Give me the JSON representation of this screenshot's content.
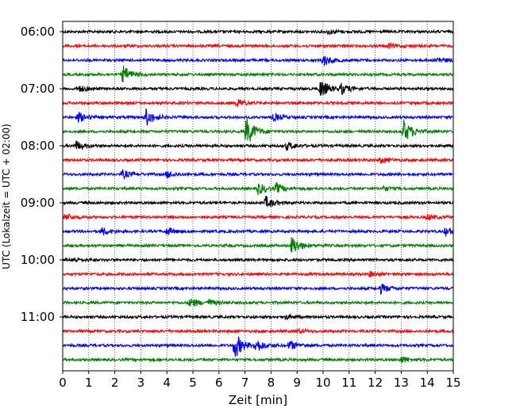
{
  "chart_data": {
    "type": "line",
    "title": "",
    "xlabel": "Zeit  [min]",
    "ylabel": "UTC (Lokalzeit = UTC + 02:00)",
    "xlim": [
      0,
      15
    ],
    "x_ticks": [
      "0",
      "1",
      "2",
      "3",
      "4",
      "5",
      "6",
      "7",
      "8",
      "9",
      "10",
      "11",
      "12",
      "13",
      "14",
      "15"
    ],
    "grid": "vertical dotted at each minute",
    "y_ticks": [
      {
        "label": "06:00",
        "row": 0
      },
      {
        "label": "07:00",
        "row": 4
      },
      {
        "label": "08:00",
        "row": 8
      },
      {
        "label": "09:00",
        "row": 12
      },
      {
        "label": "10:00",
        "row": 16
      },
      {
        "label": "11:00",
        "row": 20
      }
    ],
    "trace_colors": [
      "#000000",
      "#ff0000",
      "#0000ff",
      "#008000"
    ],
    "traces": [
      {
        "start": "06:00",
        "color": "#000000",
        "events": [
          {
            "t": 10.2,
            "amp": 0.25
          }
        ]
      },
      {
        "start": "06:15",
        "color": "#ff0000",
        "events": [
          {
            "t": 12.5,
            "amp": 0.25
          }
        ]
      },
      {
        "start": "06:30",
        "color": "#0000ff",
        "events": [
          {
            "t": 10.0,
            "amp": 0.6
          },
          {
            "t": 14.4,
            "amp": 0.35
          }
        ]
      },
      {
        "start": "06:45",
        "color": "#008000",
        "events": [
          {
            "t": 2.3,
            "amp": 0.9
          }
        ]
      },
      {
        "start": "07:00",
        "color": "#000000",
        "events": [
          {
            "t": 0.6,
            "amp": 0.35
          },
          {
            "t": 9.9,
            "amp": 1.0
          },
          {
            "t": 10.7,
            "amp": 0.5
          }
        ]
      },
      {
        "start": "07:15",
        "color": "#ff0000",
        "events": [
          {
            "t": 6.7,
            "amp": 0.4
          }
        ]
      },
      {
        "start": "07:30",
        "color": "#0000ff",
        "events": [
          {
            "t": 0.6,
            "amp": 0.5
          },
          {
            "t": 3.2,
            "amp": 0.9
          },
          {
            "t": 8.1,
            "amp": 0.4
          }
        ]
      },
      {
        "start": "07:45",
        "color": "#008000",
        "events": [
          {
            "t": 7.05,
            "amp": 1.6
          },
          {
            "t": 13.1,
            "amp": 1.2
          }
        ]
      },
      {
        "start": "08:00",
        "color": "#000000",
        "events": [
          {
            "t": 0.5,
            "amp": 0.5
          },
          {
            "t": 8.6,
            "amp": 0.4
          }
        ]
      },
      {
        "start": "08:15",
        "color": "#ff0000",
        "events": [
          {
            "t": 12.2,
            "amp": 0.3
          }
        ]
      },
      {
        "start": "08:30",
        "color": "#0000ff",
        "events": [
          {
            "t": 2.3,
            "amp": 0.4
          },
          {
            "t": 4.0,
            "amp": 0.35
          }
        ]
      },
      {
        "start": "08:45",
        "color": "#008000",
        "events": [
          {
            "t": 7.5,
            "amp": 0.6
          },
          {
            "t": 8.2,
            "amp": 0.5
          },
          {
            "t": 12.3,
            "amp": 0.25
          }
        ]
      },
      {
        "start": "09:00",
        "color": "#000000",
        "events": [
          {
            "t": 7.8,
            "amp": 0.6
          },
          {
            "t": 15.0,
            "amp": 0.35
          }
        ]
      },
      {
        "start": "09:15",
        "color": "#ff0000",
        "events": [
          {
            "t": 0.1,
            "amp": 0.35
          },
          {
            "t": 14.0,
            "amp": 0.3
          }
        ]
      },
      {
        "start": "09:30",
        "color": "#0000ff",
        "events": [
          {
            "t": 1.5,
            "amp": 0.4
          },
          {
            "t": 4.0,
            "amp": 0.35
          },
          {
            "t": 14.7,
            "amp": 0.45
          }
        ]
      },
      {
        "start": "09:45",
        "color": "#008000",
        "events": [
          {
            "t": 8.8,
            "amp": 1.0
          }
        ]
      },
      {
        "start": "10:00",
        "color": "#000000",
        "events": [
          {
            "t": 0.4,
            "amp": 0.25
          }
        ]
      },
      {
        "start": "10:15",
        "color": "#ff0000",
        "events": [
          {
            "t": 11.8,
            "amp": 0.25
          }
        ]
      },
      {
        "start": "10:30",
        "color": "#0000ff",
        "events": [
          {
            "t": 12.2,
            "amp": 0.5
          }
        ]
      },
      {
        "start": "10:45",
        "color": "#008000",
        "events": [
          {
            "t": 4.9,
            "amp": 0.5
          },
          {
            "t": 5.6,
            "amp": 0.3
          }
        ]
      },
      {
        "start": "11:00",
        "color": "#000000",
        "events": [
          {
            "t": 8.5,
            "amp": 0.25
          }
        ]
      },
      {
        "start": "11:15",
        "color": "#ff0000",
        "events": [
          {
            "t": 9.0,
            "amp": 0.2
          }
        ]
      },
      {
        "start": "11:30",
        "color": "#0000ff",
        "events": [
          {
            "t": 6.6,
            "amp": 1.4
          },
          {
            "t": 7.4,
            "amp": 0.7
          },
          {
            "t": 8.7,
            "amp": 0.5
          }
        ]
      },
      {
        "start": "11:45",
        "color": "#008000",
        "events": [
          {
            "t": 13.0,
            "amp": 0.35
          }
        ]
      }
    ]
  }
}
